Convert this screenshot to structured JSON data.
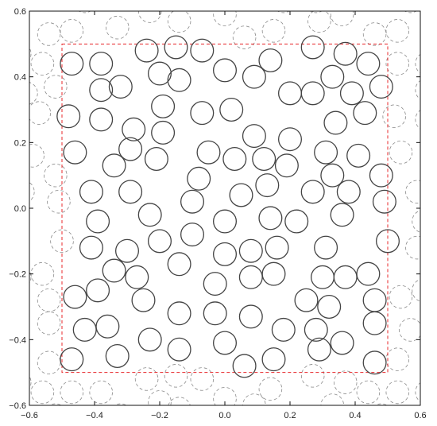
{
  "chart_data": {
    "type": "scatter",
    "title": "",
    "xlabel": "",
    "ylabel": "",
    "xlim": [
      -0.6,
      0.6
    ],
    "ylim": [
      -0.6,
      0.6
    ],
    "grid": false,
    "legend": "none",
    "x_ticks": [
      -0.6,
      -0.4,
      -0.2,
      0.0,
      0.2,
      0.4,
      0.6
    ],
    "y_ticks": [
      -0.6,
      -0.4,
      -0.2,
      0.0,
      0.2,
      0.4,
      0.6
    ],
    "x_tick_labels": [
      "−0.6",
      "−0.4",
      "−0.2",
      "0.0",
      "0.2",
      "0.4",
      "0.6"
    ],
    "y_tick_labels": [
      "−0.6",
      "−0.4",
      "−0.2",
      "0.0",
      "0.2",
      "0.4",
      "0.6"
    ],
    "cell_bounds": {
      "x": [
        -0.5,
        0.5
      ],
      "y": [
        -0.5,
        0.5
      ]
    },
    "circle_radius": 0.035,
    "colors": {
      "particles": "#444444",
      "periodic_images": "#8a8a8a",
      "cell": "#e8282b",
      "frame": "#111111"
    },
    "series": [
      {
        "values": [
          [
            -0.47,
            0.44
          ],
          [
            -0.38,
            0.44
          ],
          [
            -0.24,
            0.48
          ],
          [
            -0.15,
            0.49
          ],
          [
            -0.07,
            0.48
          ],
          [
            0.27,
            0.49
          ],
          [
            0.37,
            0.47
          ],
          [
            0.44,
            0.44
          ],
          [
            0.48,
            0.37
          ],
          [
            -0.38,
            0.36
          ],
          [
            -0.32,
            0.37
          ],
          [
            -0.2,
            0.41
          ],
          [
            -0.14,
            0.39
          ],
          [
            0.0,
            0.42
          ],
          [
            0.09,
            0.4
          ],
          [
            0.14,
            0.45
          ],
          [
            0.33,
            0.4
          ],
          [
            0.2,
            0.35
          ],
          [
            0.27,
            0.35
          ],
          [
            0.39,
            0.35
          ],
          [
            -0.48,
            0.28
          ],
          [
            -0.38,
            0.27
          ],
          [
            -0.19,
            0.31
          ],
          [
            -0.07,
            0.29
          ],
          [
            0.02,
            0.3
          ],
          [
            0.34,
            0.26
          ],
          [
            0.43,
            0.29
          ],
          [
            -0.28,
            0.24
          ],
          [
            -0.19,
            0.23
          ],
          [
            0.09,
            0.22
          ],
          [
            0.2,
            0.21
          ],
          [
            -0.46,
            0.17
          ],
          [
            -0.29,
            0.18
          ],
          [
            -0.21,
            0.15
          ],
          [
            -0.05,
            0.17
          ],
          [
            0.03,
            0.15
          ],
          [
            0.12,
            0.15
          ],
          [
            0.31,
            0.17
          ],
          [
            0.41,
            0.16
          ],
          [
            -0.34,
            0.13
          ],
          [
            -0.08,
            0.09
          ],
          [
            0.19,
            0.13
          ],
          [
            0.33,
            0.1
          ],
          [
            0.48,
            0.1
          ],
          [
            -0.41,
            0.05
          ],
          [
            -0.29,
            0.05
          ],
          [
            -0.1,
            0.02
          ],
          [
            0.05,
            0.04
          ],
          [
            0.13,
            0.07
          ],
          [
            0.27,
            0.05
          ],
          [
            0.38,
            0.05
          ],
          [
            0.49,
            0.02
          ],
          [
            -0.39,
            -0.04
          ],
          [
            -0.23,
            -0.02
          ],
          [
            0.0,
            -0.04
          ],
          [
            0.14,
            -0.03
          ],
          [
            0.22,
            -0.04
          ],
          [
            0.36,
            -0.02
          ],
          [
            -0.41,
            -0.12
          ],
          [
            -0.3,
            -0.13
          ],
          [
            -0.2,
            -0.1
          ],
          [
            -0.1,
            -0.08
          ],
          [
            0.0,
            -0.14
          ],
          [
            0.08,
            -0.13
          ],
          [
            0.16,
            -0.12
          ],
          [
            0.31,
            -0.12
          ],
          [
            0.5,
            -0.1
          ],
          [
            -0.34,
            -0.19
          ],
          [
            -0.14,
            -0.17
          ],
          [
            -0.27,
            -0.21
          ],
          [
            0.08,
            -0.21
          ],
          [
            0.15,
            -0.2
          ],
          [
            0.3,
            -0.21
          ],
          [
            0.37,
            -0.21
          ],
          [
            0.44,
            -0.2
          ],
          [
            -0.46,
            -0.27
          ],
          [
            -0.39,
            -0.25
          ],
          [
            -0.25,
            -0.28
          ],
          [
            -0.03,
            -0.23
          ],
          [
            0.25,
            -0.28
          ],
          [
            0.32,
            -0.3
          ],
          [
            0.46,
            -0.28
          ],
          [
            -0.14,
            -0.32
          ],
          [
            -0.03,
            -0.32
          ],
          [
            0.08,
            -0.33
          ],
          [
            -0.43,
            -0.37
          ],
          [
            -0.36,
            -0.36
          ],
          [
            0.18,
            -0.37
          ],
          [
            0.28,
            -0.37
          ],
          [
            0.46,
            -0.35
          ],
          [
            -0.47,
            -0.46
          ],
          [
            -0.33,
            -0.45
          ],
          [
            -0.23,
            -0.4
          ],
          [
            -0.14,
            -0.43
          ],
          [
            0.0,
            -0.41
          ],
          [
            0.06,
            -0.48
          ],
          [
            0.15,
            -0.46
          ],
          [
            0.29,
            -0.43
          ],
          [
            0.36,
            -0.41
          ],
          [
            0.46,
            -0.47
          ]
        ]
      }
    ]
  }
}
